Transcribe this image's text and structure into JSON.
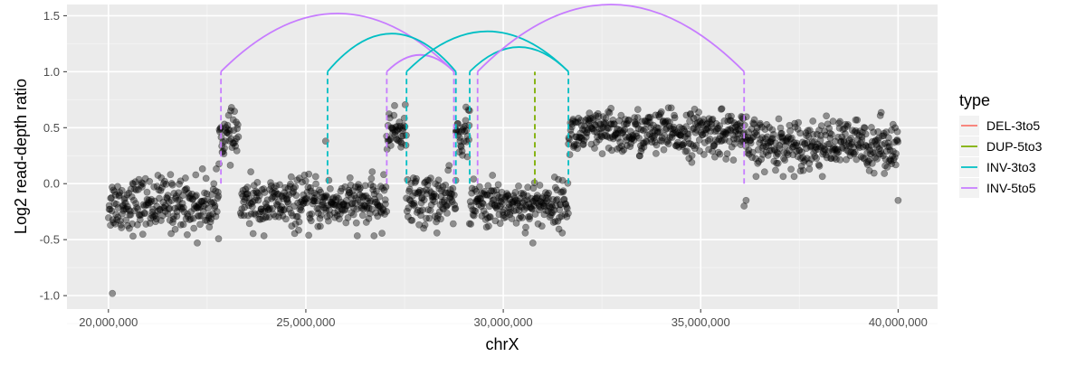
{
  "chart_data": {
    "type": "scatter",
    "xlabel": "chrX",
    "ylabel": "Log2 read-depth ratio",
    "xlim": [
      18950000,
      41000000
    ],
    "ylim": [
      -1.12,
      1.6
    ],
    "x_ticks": [
      20000000,
      25000000,
      30000000,
      35000000,
      40000000
    ],
    "x_tick_labels": [
      "20,000,000",
      "25,000,000",
      "30,000,000",
      "35,000,000",
      "40,000,000"
    ],
    "y_ticks": [
      -1.0,
      -0.5,
      0.0,
      0.5,
      1.0,
      1.5
    ],
    "y_tick_labels": [
      "-1.0",
      "-0.5",
      "0.0",
      "0.5",
      "1.0",
      "1.5"
    ],
    "grid": true,
    "legend": {
      "title": "type",
      "position": "right",
      "entries": [
        {
          "label": "DEL-3to5",
          "color": "#F8766D"
        },
        {
          "label": "DUP-5to3",
          "color": "#7CAE00"
        },
        {
          "label": "INV-3to3",
          "color": "#00BFC4"
        },
        {
          "label": "INV-5to5",
          "color": "#C77CFF"
        }
      ]
    },
    "point_color": "#000000",
    "point_opacity": 0.4,
    "segments": [
      {
        "x_start": 20000000,
        "x_end": 22800000,
        "mean": -0.18,
        "sd": 0.12
      },
      {
        "x_start": 22800000,
        "x_end": 23300000,
        "mean": 0.42,
        "sd": 0.1
      },
      {
        "x_start": 23350000,
        "x_end": 27050000,
        "mean": -0.18,
        "sd": 0.11
      },
      {
        "x_start": 27050000,
        "x_end": 27550000,
        "mean": 0.48,
        "sd": 0.09
      },
      {
        "x_start": 27550000,
        "x_end": 28800000,
        "mean": -0.15,
        "sd": 0.12
      },
      {
        "x_start": 28800000,
        "x_end": 29150000,
        "mean": 0.45,
        "sd": 0.1
      },
      {
        "x_start": 29150000,
        "x_end": 31650000,
        "mean": -0.18,
        "sd": 0.1
      },
      {
        "x_start": 31650000,
        "x_end": 36100000,
        "mean": 0.45,
        "sd": 0.1
      },
      {
        "x_start": 36100000,
        "x_end": 40000000,
        "mean": 0.35,
        "sd": 0.11
      }
    ],
    "outliers": [
      {
        "x": 20100000,
        "y": -0.98
      },
      {
        "x": 22250000,
        "y": -0.53
      },
      {
        "x": 30750000,
        "y": -0.53
      },
      {
        "x": 36100000,
        "y": -0.2
      },
      {
        "x": 36150000,
        "y": -0.15
      },
      {
        "x": 40000000,
        "y": -0.15
      },
      {
        "x": 25500000,
        "y": 0.38
      }
    ],
    "arcs": [
      {
        "type": "INV-5to5",
        "x1": 22850000,
        "x2": 28750000,
        "height": 1.52
      },
      {
        "type": "INV-3to3",
        "x1": 25550000,
        "x2": 28800000,
        "height": 1.34
      },
      {
        "type": "INV-5to5",
        "x1": 27050000,
        "x2": 28750000,
        "height": 1.15
      },
      {
        "type": "INV-3to3",
        "x1": 27550000,
        "x2": 31650000,
        "height": 1.36
      },
      {
        "type": "INV-3to3",
        "x1": 29150000,
        "x2": 31650000,
        "height": 1.22
      },
      {
        "type": "INV-5to5",
        "x1": 29350000,
        "x2": 36100000,
        "height": 1.6
      }
    ],
    "breakpoint_lines": [
      {
        "type": "INV-5to5",
        "x": 22850000,
        "y_top": 1.0
      },
      {
        "type": "INV-3to3",
        "x": 25550000,
        "y_top": 1.0
      },
      {
        "type": "INV-5to5",
        "x": 27050000,
        "y_top": 1.0
      },
      {
        "type": "INV-3to3",
        "x": 27550000,
        "y_top": 1.0
      },
      {
        "type": "INV-5to5",
        "x": 28750000,
        "y_top": 1.0
      },
      {
        "type": "INV-3to3",
        "x": 28800000,
        "y_top": 1.0
      },
      {
        "type": "INV-3to3",
        "x": 29150000,
        "y_top": 1.0
      },
      {
        "type": "INV-5to5",
        "x": 29350000,
        "y_top": 1.0
      },
      {
        "type": "DUP-5to3",
        "x": 30800000,
        "y_top": 1.0
      },
      {
        "type": "INV-3to3",
        "x": 31650000,
        "y_top": 1.0
      },
      {
        "type": "INV-5to5",
        "x": 36100000,
        "y_top": 1.0
      }
    ]
  }
}
